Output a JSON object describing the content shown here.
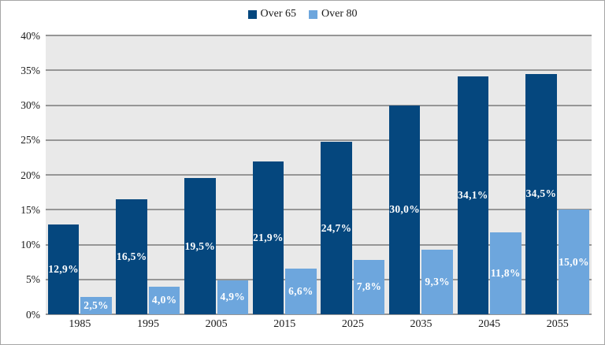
{
  "chart_data": {
    "type": "bar",
    "title": "",
    "categories": [
      "1985",
      "1995",
      "2005",
      "2015",
      "2025",
      "2035",
      "2045",
      "2055"
    ],
    "series": [
      {
        "name": "Over 65",
        "color": "#05477e",
        "values": [
          12.9,
          16.5,
          19.5,
          21.9,
          24.7,
          30.0,
          34.1,
          34.5
        ],
        "labels": [
          "12,9%",
          "16,5%",
          "19,5%",
          "21,9%",
          "24,7%",
          "30,0%",
          "34,1%",
          "34,5%"
        ]
      },
      {
        "name": "Over 80",
        "color": "#6da6dd",
        "values": [
          2.5,
          4.0,
          4.9,
          6.6,
          7.8,
          9.3,
          11.8,
          15.0
        ],
        "labels": [
          "2,5%",
          "4,0%",
          "4,9%",
          "6,6%",
          "7,8%",
          "9,3%",
          "11,8%",
          "15,0%"
        ]
      }
    ],
    "xlabel": "",
    "ylabel": "",
    "ylim": [
      0,
      40
    ],
    "ytick_step": 5,
    "ytick_labels": [
      "0%",
      "5%",
      "10%",
      "15%",
      "20%",
      "25%",
      "30%",
      "35%",
      "40%"
    ],
    "grid": true,
    "legend_position": "top-center",
    "colors": {
      "plot_background": "#e9e9e9",
      "gridline": "#969696",
      "bar_value_text": "#ffffff",
      "axis_text": "#1a1a1a",
      "chart_border": "#a6a6a6"
    }
  }
}
